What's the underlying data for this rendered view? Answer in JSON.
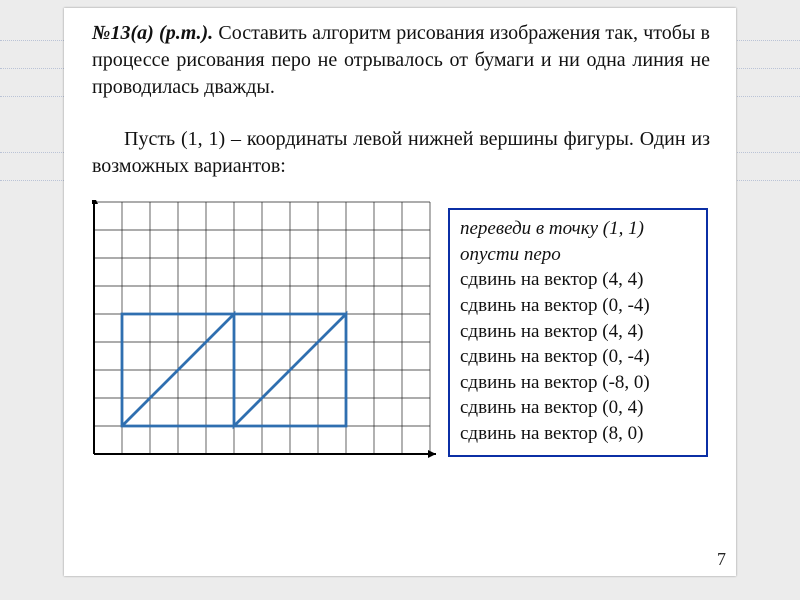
{
  "background_color": "#ececec",
  "slide_bg": "#ffffff",
  "guide_line_color": "#9aa9c9",
  "problem": {
    "title": "№13(а) (р.т.).",
    "text": "Составить алгоритм рисования изображения так, чтобы в процессе рисования перо не отрывалось от бумаги и ни одна линия не проводилась дважды."
  },
  "solution_intro": "Пусть (1, 1) – координаты левой нижней вершины фигуры. Один из возможных вариантов:",
  "commands": {
    "border_color": "#0b2fa5",
    "italic_lines": [
      0,
      1
    ],
    "lines": [
      "переведи в точку (1, 1)",
      "опусти перо",
      "сдвинь на вектор (4, 4)",
      "сдвинь на вектор (0, -4)",
      "сдвинь на вектор (4, 4)",
      "сдвинь на вектор (0, -4)",
      "сдвинь на вектор (-8, 0)",
      "сдвинь на вектор (0, 4)",
      "сдвинь на вектор (8, 0)"
    ]
  },
  "diagram": {
    "type": "grid-figure",
    "cell": 28,
    "cols": 12,
    "rows": 9,
    "grid_color": "#222222",
    "grid_width": 0.7,
    "axis_color": "#000000",
    "axis_width": 2,
    "origin_cell": {
      "col": 0,
      "row": 8
    },
    "arrow_x_end_col": 12,
    "arrow_y_end_row": 0,
    "figure_color": "#2f6fb0",
    "figure_width": 2.8,
    "start": [
      1,
      1
    ],
    "moves": [
      [
        4,
        4
      ],
      [
        0,
        -4
      ],
      [
        4,
        4
      ],
      [
        0,
        -4
      ],
      [
        -8,
        0
      ],
      [
        0,
        4
      ],
      [
        8,
        0
      ]
    ]
  },
  "page_number": "7",
  "dotted_guides_y": [
    40,
    68,
    96,
    152,
    180
  ]
}
